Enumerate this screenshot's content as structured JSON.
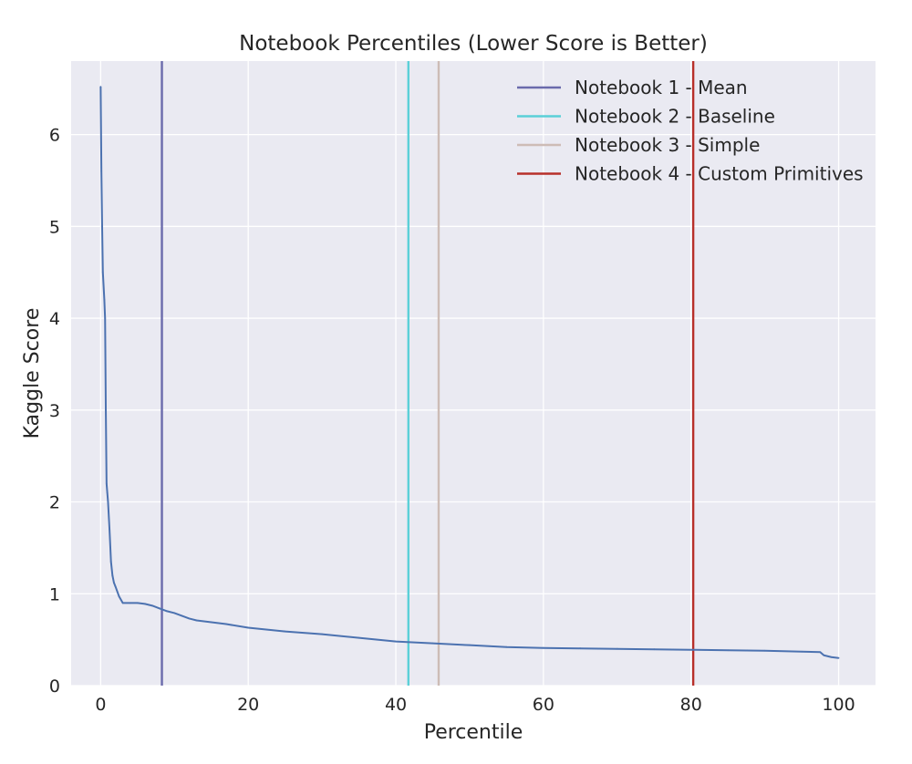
{
  "chart_data": {
    "type": "line",
    "title": "Notebook Percentiles (Lower Score is Better)",
    "xlabel": "Percentile",
    "ylabel": "Kaggle Score",
    "xlim": [
      -4,
      105
    ],
    "ylim": [
      0,
      6.8
    ],
    "xticks": [
      0,
      20,
      40,
      60,
      80,
      100
    ],
    "yticks": [
      0,
      1,
      2,
      3,
      4,
      5,
      6
    ],
    "grid": true,
    "legend_position": "top-right",
    "background_color": "#eaeaf2",
    "grid_color": "#ffffff",
    "curve": {
      "color": "#4c72b0",
      "x": [
        0,
        0.1,
        0.2,
        0.3,
        0.5,
        0.6,
        0.7,
        0.8,
        0.9,
        1.0,
        1.2,
        1.4,
        1.6,
        1.8,
        2.0,
        2.5,
        3.0,
        4.0,
        5.0,
        6.0,
        7.0,
        8.0,
        9.0,
        10.0,
        11.0,
        12.0,
        13.0,
        15.0,
        17.0,
        20.0,
        25.0,
        30.0,
        35.0,
        40.0,
        45.0,
        50.0,
        55.0,
        60.0,
        65.0,
        70.0,
        75.0,
        80.0,
        85.0,
        90.0,
        95.0,
        97.5,
        98.0,
        99.0,
        100.0
      ],
      "y": [
        6.52,
        5.6,
        5.0,
        4.5,
        4.2,
        4.0,
        3.0,
        2.2,
        2.1,
        2.0,
        1.7,
        1.35,
        1.2,
        1.12,
        1.08,
        0.97,
        0.9,
        0.9,
        0.9,
        0.89,
        0.87,
        0.84,
        0.81,
        0.79,
        0.76,
        0.73,
        0.71,
        0.69,
        0.67,
        0.63,
        0.59,
        0.56,
        0.52,
        0.48,
        0.46,
        0.44,
        0.42,
        0.41,
        0.405,
        0.4,
        0.395,
        0.39,
        0.385,
        0.38,
        0.37,
        0.365,
        0.33,
        0.31,
        0.3
      ]
    },
    "series": [
      {
        "name": "Notebook 1 - Mean",
        "x": 8.3,
        "color": "#6b6bac"
      },
      {
        "name": "Notebook 2 - Baseline",
        "x": 41.7,
        "color": "#5bd0d8"
      },
      {
        "name": "Notebook 3 - Simple",
        "x": 45.8,
        "color": "#cdbcb6"
      },
      {
        "name": "Notebook 4 - Custom Primitives",
        "x": 80.3,
        "color": "#b8302a"
      }
    ]
  }
}
